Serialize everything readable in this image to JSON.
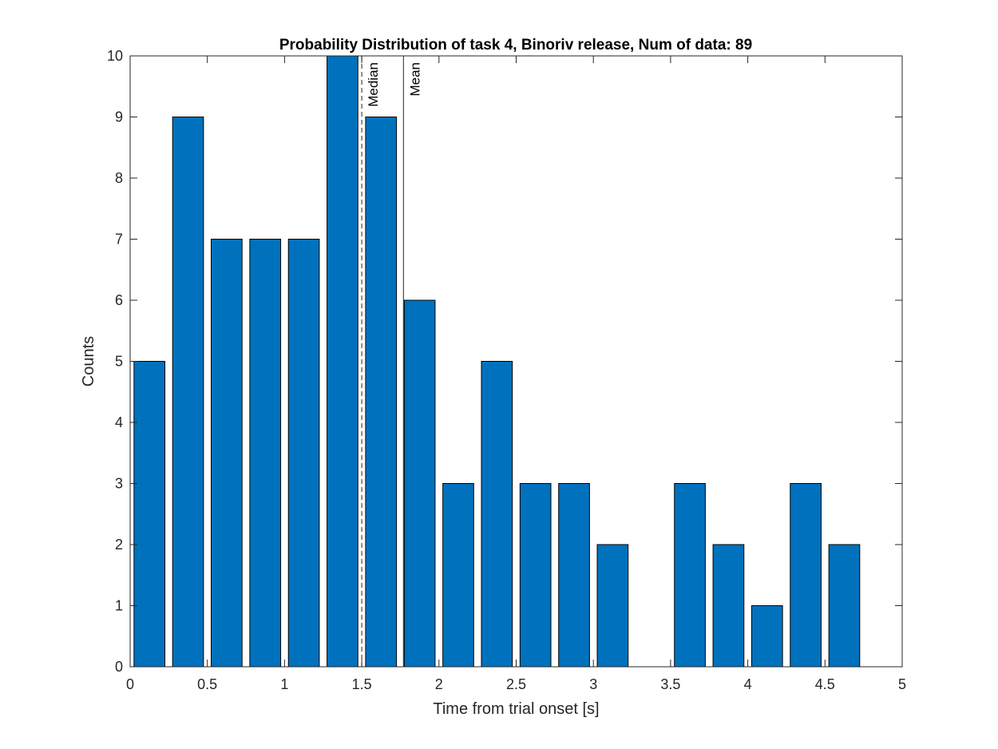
{
  "chart_data": {
    "type": "bar",
    "title": "Probability Distribution of task 4, Binoriv release, Num of data: 89",
    "xlabel": "Time from trial onset [s]",
    "ylabel": "Counts",
    "xlim": [
      0,
      5
    ],
    "ylim": [
      0,
      10
    ],
    "xticks": [
      0,
      0.5,
      1,
      1.5,
      2,
      2.5,
      3,
      3.5,
      4,
      4.5,
      5
    ],
    "xtick_labels": [
      "0",
      "0.5",
      "1",
      "1.5",
      "2",
      "2.5",
      "3",
      "3.5",
      "4",
      "4.5",
      "5"
    ],
    "yticks": [
      0,
      1,
      2,
      3,
      4,
      5,
      6,
      7,
      8,
      9,
      10
    ],
    "ytick_labels": [
      "0",
      "1",
      "2",
      "3",
      "4",
      "5",
      "6",
      "7",
      "8",
      "9",
      "10"
    ],
    "bin_width": 0.25,
    "bar_width_fraction": 0.8,
    "bin_centers": [
      0.125,
      0.375,
      0.625,
      0.875,
      1.125,
      1.375,
      1.625,
      1.875,
      2.125,
      2.375,
      2.625,
      2.875,
      3.125,
      3.375,
      3.625,
      3.875,
      4.125,
      4.375,
      4.625,
      4.875
    ],
    "values": [
      5,
      9,
      7,
      7,
      7,
      10,
      9,
      6,
      3,
      5,
      3,
      3,
      2,
      0,
      3,
      2,
      1,
      3,
      2,
      0
    ],
    "bar_color": "#0072BD",
    "grid": false,
    "annotations": [
      {
        "label": "Median",
        "x": 1.5,
        "style": "dashed"
      },
      {
        "label": "Mean",
        "x": 1.77,
        "style": "solid"
      }
    ]
  }
}
